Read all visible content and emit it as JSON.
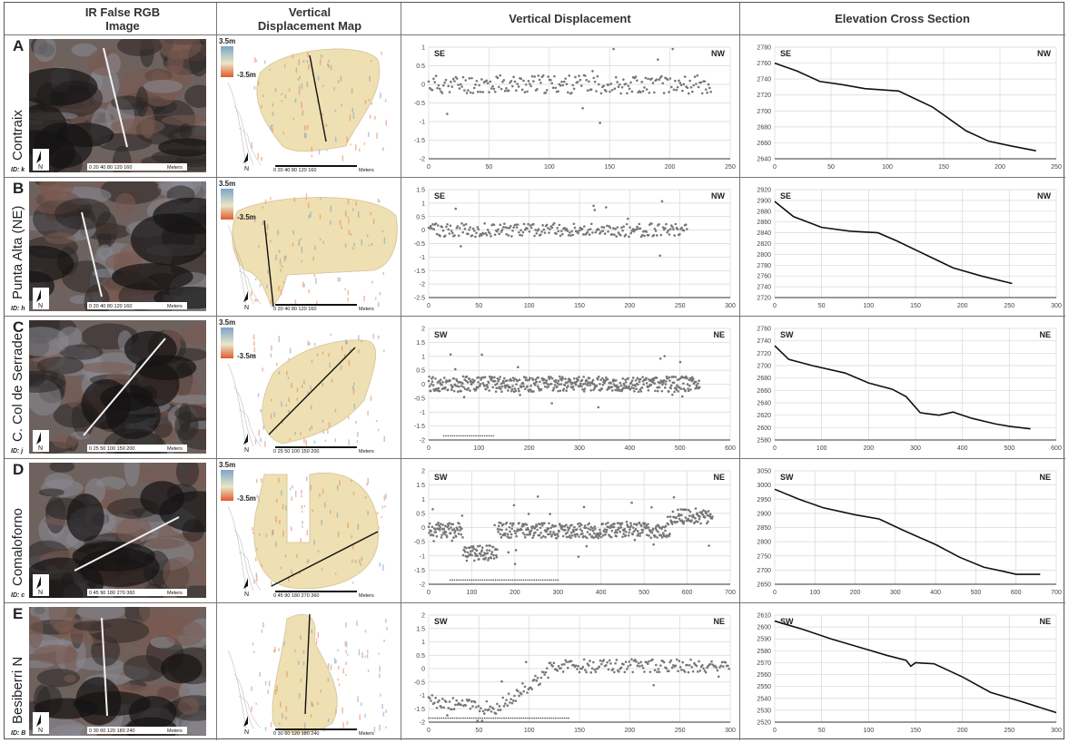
{
  "header": {
    "col1": "IR False RGB\nImage",
    "col2": "Vertical\nDisplacement Map",
    "col3": "Vertical Displacement",
    "col4": "Elevation Cross Section"
  },
  "legend": {
    "top": "3.5m",
    "bottom": "-3.5m"
  },
  "scale_units": "Meters",
  "north": "N",
  "rows": [
    {
      "letter": "A",
      "name": "Contraix",
      "id": "ID: k",
      "ir_scale": "0 20 40   80   120  160",
      "map_scale": "0 20 40   80   120  160",
      "vd": {
        "dir_left": "SE",
        "dir_right": "NW",
        "xmax": 250,
        "xstep": 50,
        "ymin": -2,
        "ymax": 1,
        "n": 230,
        "dense": false,
        "flag": []
      },
      "el": {
        "dir_left": "SE",
        "dir_right": "NW",
        "xmax": 250,
        "xstep": 50,
        "ymin": 2640,
        "ymax": 2780,
        "ystep": 20,
        "profile": [
          [
            0,
            2760
          ],
          [
            20,
            2750
          ],
          [
            40,
            2737
          ],
          [
            60,
            2733
          ],
          [
            80,
            2728
          ],
          [
            100,
            2726
          ],
          [
            110,
            2725
          ],
          [
            125,
            2715
          ],
          [
            140,
            2705
          ],
          [
            150,
            2695
          ],
          [
            170,
            2675
          ],
          [
            190,
            2662
          ],
          [
            210,
            2656
          ],
          [
            232,
            2650
          ]
        ]
      }
    },
    {
      "letter": "B",
      "name": "Punta Alta (NE)",
      "id": "ID: h",
      "ir_scale": "0 20 40   80   120  160",
      "map_scale": "0 20 40   80   120  160",
      "vd": {
        "dir_left": "SE",
        "dir_right": "NW",
        "xmax": 300,
        "xstep": 50,
        "ymin": -2.5,
        "ymax": 1.5,
        "n": 250,
        "dense": false,
        "flag": []
      },
      "el": {
        "dir_left": "SE",
        "dir_right": "NW",
        "xmax": 300,
        "xstep": 50,
        "ymin": 2720,
        "ymax": 2920,
        "ystep": 20,
        "profile": [
          [
            0,
            2898
          ],
          [
            20,
            2870
          ],
          [
            50,
            2850
          ],
          [
            80,
            2843
          ],
          [
            110,
            2840
          ],
          [
            130,
            2825
          ],
          [
            160,
            2800
          ],
          [
            190,
            2775
          ],
          [
            220,
            2760
          ],
          [
            253,
            2746
          ]
        ]
      }
    },
    {
      "letter": "C",
      "name": "C. Col de Serrade",
      "id": "ID: j",
      "ir_scale": "0 25 50   100  150  200",
      "map_scale": "0 25 50   100  150  200",
      "vd": {
        "dir_left": "SW",
        "dir_right": "NE",
        "xmax": 600,
        "xstep": 100,
        "ymin": -2,
        "ymax": 2,
        "n": 520,
        "dense": true,
        "flag": [
          30,
          130
        ]
      },
      "el": {
        "dir_left": "SW",
        "dir_right": "NE",
        "xmax": 600,
        "xstep": 100,
        "ymin": 2580,
        "ymax": 2760,
        "ystep": 20,
        "profile": [
          [
            0,
            2732
          ],
          [
            30,
            2710
          ],
          [
            80,
            2700
          ],
          [
            150,
            2688
          ],
          [
            200,
            2672
          ],
          [
            250,
            2662
          ],
          [
            280,
            2650
          ],
          [
            310,
            2624
          ],
          [
            350,
            2620
          ],
          [
            380,
            2625
          ],
          [
            420,
            2615
          ],
          [
            470,
            2606
          ],
          [
            500,
            2602
          ],
          [
            545,
            2598
          ]
        ]
      }
    },
    {
      "letter": "D",
      "name": "Comaloforno",
      "id": "ID: c",
      "ir_scale": "0 45 90   180  270  360",
      "map_scale": "0 45 90   180  270  360",
      "vd": {
        "dir_left": "SW",
        "dir_right": "NE",
        "xmax": 700,
        "xstep": 100,
        "ymin": -2,
        "ymax": 2,
        "n": 560,
        "dense": true,
        "flag": [
          50,
          300
        ]
      },
      "el": {
        "dir_left": "SW",
        "dir_right": "NE",
        "xmax": 700,
        "xstep": 100,
        "ymin": 2650,
        "ymax": 3050,
        "ystep": 50,
        "profile": [
          [
            0,
            2985
          ],
          [
            60,
            2950
          ],
          [
            120,
            2920
          ],
          [
            200,
            2895
          ],
          [
            260,
            2880
          ],
          [
            320,
            2840
          ],
          [
            400,
            2790
          ],
          [
            460,
            2745
          ],
          [
            520,
            2710
          ],
          [
            570,
            2695
          ],
          [
            600,
            2685
          ],
          [
            660,
            2685
          ]
        ]
      }
    },
    {
      "letter": "E",
      "name": "Besiberri N",
      "id": "ID: B",
      "ir_scale": "0 30 60   120  180  240",
      "map_scale": "0 30 60   120  180  240",
      "vd": {
        "dir_left": "SW",
        "dir_right": "NE",
        "xmax": 300,
        "xstep": 50,
        "ymin": -2,
        "ymax": 2,
        "n": 260,
        "dense": false,
        "flag": [
          0,
          140
        ]
      },
      "el": {
        "dir_left": "SW",
        "dir_right": "NE",
        "xmax": 300,
        "xstep": 50,
        "ymin": 2520,
        "ymax": 2610,
        "ystep": 10,
        "profile": [
          [
            0,
            2605
          ],
          [
            30,
            2598
          ],
          [
            60,
            2590
          ],
          [
            90,
            2583
          ],
          [
            120,
            2576
          ],
          [
            140,
            2572
          ],
          [
            145,
            2567
          ],
          [
            150,
            2570
          ],
          [
            170,
            2569
          ],
          [
            200,
            2558
          ],
          [
            230,
            2545
          ],
          [
            260,
            2538
          ],
          [
            300,
            2528
          ]
        ]
      }
    }
  ]
}
